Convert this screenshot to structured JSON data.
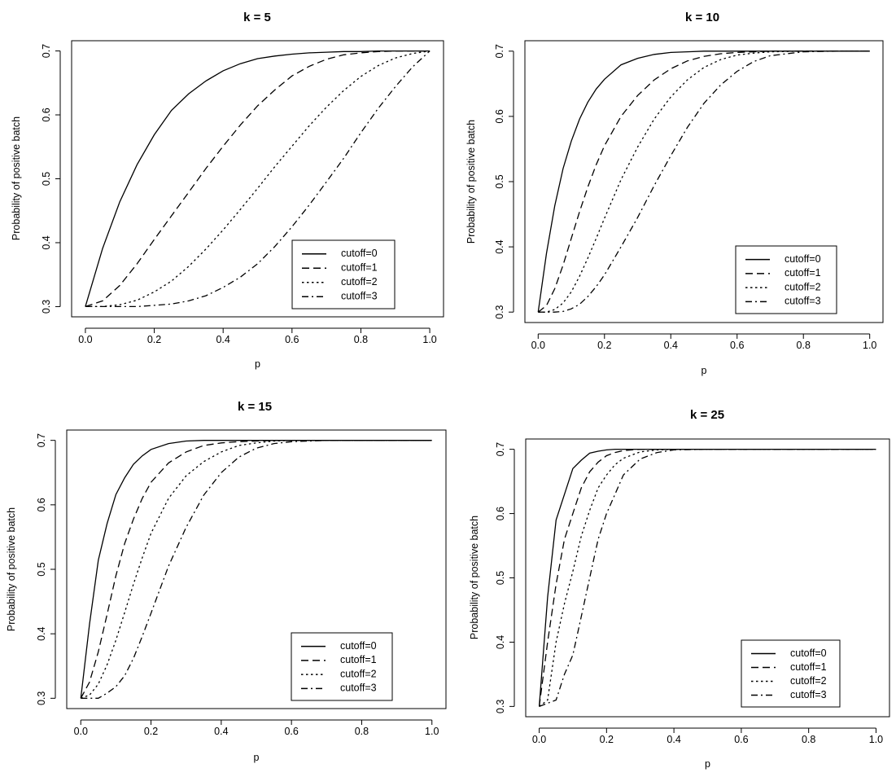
{
  "chart_data": [
    {
      "type": "line",
      "title": "k = 5",
      "xlabel": "p",
      "ylabel": "Probability of positive batch",
      "xlim": [
        0,
        1
      ],
      "ylim": [
        0.3,
        0.7
      ],
      "xticks": [
        "0.0",
        "0.2",
        "0.4",
        "0.6",
        "0.8",
        "1.0"
      ],
      "yticks": [
        "0.3",
        "0.4",
        "0.5",
        "0.6",
        "0.7"
      ],
      "legend_position": "bottom-right",
      "grid": false,
      "x": [
        0,
        0.05,
        0.1,
        0.15,
        0.2,
        0.25,
        0.3,
        0.35,
        0.4,
        0.45,
        0.5,
        0.55,
        0.6,
        0.65,
        0.7,
        0.75,
        0.8,
        0.85,
        0.9,
        0.95,
        1.0
      ],
      "series": [
        {
          "name": "cutoff=0",
          "values": [
            0.3,
            0.391,
            0.464,
            0.522,
            0.569,
            0.607,
            0.633,
            0.653,
            0.669,
            0.68,
            0.688,
            0.692,
            0.695,
            0.697,
            0.698,
            0.699,
            0.699,
            0.7,
            0.7,
            0.7,
            0.7
          ]
        },
        {
          "name": "cutoff=1",
          "values": [
            0.3,
            0.309,
            0.333,
            0.367,
            0.405,
            0.442,
            0.479,
            0.516,
            0.551,
            0.584,
            0.614,
            0.639,
            0.661,
            0.676,
            0.687,
            0.694,
            0.697,
            0.699,
            0.7,
            0.7,
            0.7
          ]
        },
        {
          "name": "cutoff=2",
          "values": [
            0.3,
            0.3,
            0.303,
            0.31,
            0.323,
            0.34,
            0.363,
            0.39,
            0.42,
            0.452,
            0.485,
            0.519,
            0.551,
            0.583,
            0.612,
            0.638,
            0.66,
            0.677,
            0.689,
            0.696,
            0.7
          ]
        },
        {
          "name": "cutoff=3",
          "values": [
            0.3,
            0.3,
            0.3,
            0.3,
            0.302,
            0.304,
            0.309,
            0.317,
            0.33,
            0.346,
            0.367,
            0.394,
            0.425,
            0.459,
            0.495,
            0.532,
            0.572,
            0.61,
            0.644,
            0.675,
            0.7
          ]
        }
      ]
    },
    {
      "type": "line",
      "title": "k = 10",
      "xlabel": "p",
      "ylabel": "Probability of positive batch",
      "xlim": [
        0,
        1
      ],
      "ylim": [
        0.3,
        0.7
      ],
      "xticks": [
        "0.0",
        "0.2",
        "0.4",
        "0.6",
        "0.8",
        "1.0"
      ],
      "yticks": [
        "0.3",
        "0.4",
        "0.5",
        "0.6",
        "0.7"
      ],
      "legend_position": "bottom-right",
      "grid": false,
      "x": [
        0,
        0.025,
        0.05,
        0.075,
        0.1,
        0.125,
        0.15,
        0.175,
        0.2,
        0.25,
        0.3,
        0.35,
        0.4,
        0.45,
        0.5,
        0.55,
        0.6,
        0.65,
        0.7,
        0.8,
        0.9,
        1.0
      ],
      "series": [
        {
          "name": "cutoff=0",
          "values": [
            0.3,
            0.39,
            0.463,
            0.52,
            0.562,
            0.596,
            0.622,
            0.642,
            0.657,
            0.679,
            0.689,
            0.695,
            0.698,
            0.699,
            0.7,
            0.7,
            0.7,
            0.7,
            0.7,
            0.7,
            0.7,
            0.7
          ]
        },
        {
          "name": "cutoff=1",
          "values": [
            0.3,
            0.31,
            0.336,
            0.372,
            0.413,
            0.454,
            0.492,
            0.526,
            0.555,
            0.6,
            0.632,
            0.656,
            0.673,
            0.685,
            0.692,
            0.696,
            0.698,
            0.699,
            0.7,
            0.7,
            0.7,
            0.7
          ]
        },
        {
          "name": "cutoff=2",
          "values": [
            0.3,
            0.3,
            0.304,
            0.314,
            0.331,
            0.355,
            0.383,
            0.413,
            0.444,
            0.503,
            0.553,
            0.596,
            0.63,
            0.656,
            0.675,
            0.687,
            0.694,
            0.697,
            0.699,
            0.7,
            0.7,
            0.7
          ]
        },
        {
          "name": "cutoff=3",
          "values": [
            0.3,
            0.3,
            0.3,
            0.301,
            0.305,
            0.312,
            0.324,
            0.339,
            0.357,
            0.4,
            0.445,
            0.494,
            0.54,
            0.583,
            0.62,
            0.648,
            0.669,
            0.684,
            0.693,
            0.699,
            0.7,
            0.7
          ]
        }
      ]
    },
    {
      "type": "line",
      "title": "k = 15",
      "xlabel": "p",
      "ylabel": "Probability of positive batch",
      "xlim": [
        0,
        1
      ],
      "ylim": [
        0.3,
        0.7
      ],
      "xticks": [
        "0.0",
        "0.2",
        "0.4",
        "0.6",
        "0.8",
        "1.0"
      ],
      "yticks": [
        "0.3",
        "0.4",
        "0.5",
        "0.6",
        "0.7"
      ],
      "legend_position": "bottom-right",
      "grid": false,
      "x": [
        0,
        0.025,
        0.05,
        0.075,
        0.1,
        0.125,
        0.15,
        0.175,
        0.2,
        0.25,
        0.3,
        0.35,
        0.4,
        0.45,
        0.5,
        0.55,
        0.6,
        0.7,
        0.8,
        0.9,
        1.0
      ],
      "series": [
        {
          "name": "cutoff=0",
          "values": [
            0.3,
            0.415,
            0.514,
            0.571,
            0.616,
            0.642,
            0.663,
            0.676,
            0.686,
            0.695,
            0.699,
            0.7,
            0.7,
            0.7,
            0.7,
            0.7,
            0.7,
            0.7,
            0.7,
            0.7,
            0.7
          ]
        },
        {
          "name": "cutoff=1",
          "values": [
            0.3,
            0.325,
            0.372,
            0.43,
            0.49,
            0.54,
            0.578,
            0.61,
            0.635,
            0.665,
            0.682,
            0.692,
            0.696,
            0.698,
            0.699,
            0.7,
            0.7,
            0.7,
            0.7,
            0.7,
            0.7
          ]
        },
        {
          "name": "cutoff=2",
          "values": [
            0.3,
            0.305,
            0.322,
            0.352,
            0.39,
            0.433,
            0.477,
            0.518,
            0.556,
            0.61,
            0.645,
            0.667,
            0.682,
            0.692,
            0.696,
            0.699,
            0.7,
            0.7,
            0.7,
            0.7,
            0.7
          ]
        },
        {
          "name": "cutoff=3",
          "values": [
            0.3,
            0.3,
            0.3,
            0.308,
            0.318,
            0.335,
            0.362,
            0.396,
            0.432,
            0.505,
            0.565,
            0.615,
            0.65,
            0.674,
            0.688,
            0.695,
            0.698,
            0.7,
            0.7,
            0.7,
            0.7
          ]
        }
      ]
    },
    {
      "type": "line",
      "title": "k = 25",
      "xlabel": "p",
      "ylabel": "Probability of positive batch",
      "xlim": [
        0,
        1
      ],
      "ylim": [
        0.3,
        0.7
      ],
      "xticks": [
        "0.0",
        "0.2",
        "0.4",
        "0.6",
        "0.8",
        "1.0"
      ],
      "yticks": [
        "0.3",
        "0.4",
        "0.5",
        "0.6",
        "0.7"
      ],
      "legend_position": "bottom-right",
      "grid": false,
      "x": [
        0,
        0.025,
        0.05,
        0.075,
        0.1,
        0.125,
        0.15,
        0.175,
        0.2,
        0.225,
        0.25,
        0.3,
        0.35,
        0.4,
        0.5,
        0.6,
        0.8,
        1.0
      ],
      "series": [
        {
          "name": "cutoff=0",
          "values": [
            0.3,
            0.47,
            0.59,
            0.63,
            0.67,
            0.683,
            0.694,
            0.697,
            0.699,
            0.7,
            0.7,
            0.7,
            0.7,
            0.7,
            0.7,
            0.7,
            0.7,
            0.7
          ]
        },
        {
          "name": "cutoff=1",
          "values": [
            0.3,
            0.4,
            0.49,
            0.56,
            0.6,
            0.64,
            0.665,
            0.68,
            0.69,
            0.695,
            0.698,
            0.7,
            0.7,
            0.7,
            0.7,
            0.7,
            0.7,
            0.7
          ]
        },
        {
          "name": "cutoff=2",
          "values": [
            0.3,
            0.31,
            0.4,
            0.46,
            0.51,
            0.565,
            0.605,
            0.64,
            0.66,
            0.676,
            0.686,
            0.696,
            0.699,
            0.7,
            0.7,
            0.7,
            0.7,
            0.7
          ]
        },
        {
          "name": "cutoff=3",
          "values": [
            0.3,
            0.305,
            0.31,
            0.35,
            0.38,
            0.44,
            0.5,
            0.56,
            0.6,
            0.63,
            0.66,
            0.685,
            0.695,
            0.699,
            0.7,
            0.7,
            0.7,
            0.7
          ]
        }
      ]
    }
  ]
}
